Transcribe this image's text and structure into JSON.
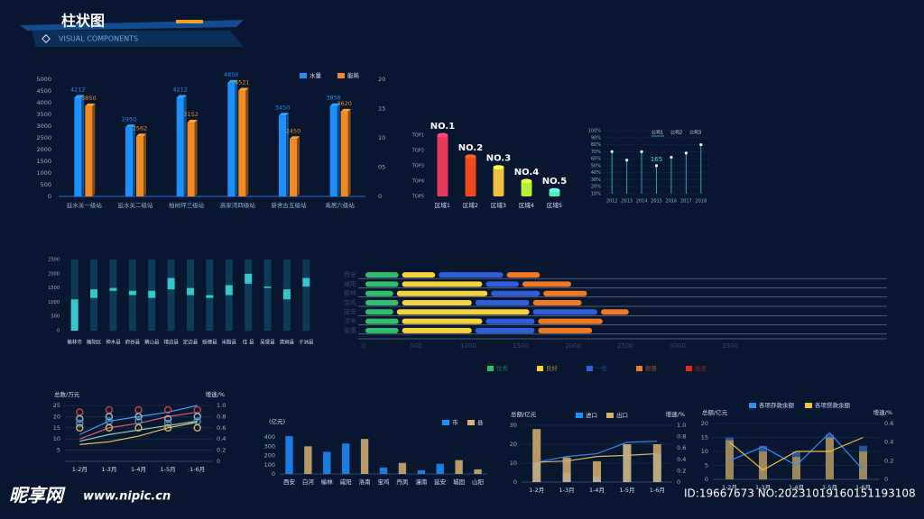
{
  "header": {
    "title": "柱状图",
    "subtitle": "VISUAL COMPONENTS"
  },
  "watermark": {
    "site": "昵享网",
    "url": "www.nipic.cn",
    "id": "ID:19667673 NO:20231019160151193108"
  },
  "chart_data": [
    {
      "type": "bar3d",
      "categories": [
        "延水关一级站",
        "延水关二级站",
        "柏树坪三级站",
        "高家湾四级站",
        "新舍古五级站",
        "禹居六级站"
      ],
      "series": [
        {
          "name": "水量",
          "color": "#1e8fff",
          "values": [
            4212,
            2950,
            4212,
            4850,
            3450,
            3856
          ]
        },
        {
          "name": "能耗",
          "color": "#f08a24",
          "values": [
            3850,
            2562,
            3152,
            4521,
            2450,
            3620
          ]
        }
      ],
      "ylim": [
        0,
        5000
      ],
      "yticks": [
        0,
        500,
        1000,
        1500,
        2000,
        2500,
        3000,
        3500,
        4000,
        4500,
        5000
      ],
      "y2lim": [
        0,
        20
      ],
      "y2ticks": [
        0,
        {
          "value": 5,
          "label": "05"
        },
        10,
        15,
        20
      ]
    },
    {
      "type": "rank",
      "categories": [
        "区域1",
        "区域2",
        "区域3",
        "区域4",
        "区域5"
      ],
      "values": [
        4,
        2.6,
        1.9,
        1,
        0.4
      ],
      "ranks": [
        "NO.1",
        "NO.2",
        "NO.3",
        "NO.4",
        "NO.5"
      ],
      "colors": [
        "#e8395f",
        "#f04a1c",
        "#f0c040",
        "#b6f03a",
        "#4df0b0"
      ],
      "ylim": [
        0,
        4
      ],
      "yticks": [
        {
          "value": 4,
          "label": "TOP1"
        },
        {
          "value": 3,
          "label": "TOP2"
        },
        {
          "value": 2,
          "label": "TOP3"
        },
        {
          "value": 1,
          "label": "TOP4"
        },
        {
          "value": 0,
          "label": "TOP5"
        }
      ]
    },
    {
      "type": "lollipop",
      "categories": [
        "2012",
        "2013",
        "2014",
        "2015",
        "2016",
        "2017",
        "2018"
      ],
      "values": [
        70,
        58,
        70,
        50,
        62,
        68,
        80
      ],
      "color": "#3ee0e0",
      "legend": [
        "公司1",
        "公司2",
        "公司3"
      ],
      "annotations": [
        {
          "text": "165",
          "at": "2015"
        }
      ],
      "ylim": [
        10,
        100
      ],
      "yticks": [
        {
          "value": 10,
          "label": "10%"
        },
        {
          "value": 20,
          "label": "20%"
        },
        {
          "value": 30,
          "label": "30%"
        },
        {
          "value": 40,
          "label": "40%"
        },
        {
          "value": 50,
          "label": "50%"
        },
        {
          "value": 60,
          "label": "60%"
        },
        {
          "value": 70,
          "label": "70%"
        },
        {
          "value": 80,
          "label": "80%"
        },
        {
          "value": 90,
          "label": "90%"
        },
        {
          "value": 100,
          "label": "100%"
        }
      ],
      "grid": true
    },
    {
      "type": "range",
      "categories": [
        "榆林市",
        "榆阳区",
        "神木县",
        "府谷县",
        "横山县",
        "靖边县",
        "定边县",
        "绥德县",
        "米脂县",
        "佳 县",
        "吴堡县",
        "清涧县",
        "子洲县"
      ],
      "ranges": [
        [
          0,
          1100
        ],
        [
          1150,
          1450
        ],
        [
          1400,
          1500
        ],
        [
          1250,
          1400
        ],
        [
          1150,
          1400
        ],
        [
          1450,
          1850
        ],
        [
          1250,
          1500
        ],
        [
          1150,
          1250
        ],
        [
          1250,
          1600
        ],
        [
          1650,
          2000
        ],
        [
          1500,
          1550
        ],
        [
          1100,
          1450
        ],
        [
          1550,
          1850
        ]
      ],
      "color": "#3de0e0",
      "ylim": [
        0,
        2500
      ],
      "yticks": [
        0,
        500,
        1000,
        1500,
        2000,
        2500
      ]
    },
    {
      "type": "hstack",
      "categories": [
        "西安",
        "咸阳",
        "榆林",
        "宝鸡",
        "延安",
        "汉中",
        "安康"
      ],
      "series": [
        {
          "name": "优秀",
          "color": "#2ebf6e",
          "values": [
            350,
            350,
            300,
            350,
            300,
            350,
            350
          ]
        },
        {
          "name": "良好",
          "color": "#f5d340",
          "values": [
            350,
            800,
            900,
            700,
            1300,
            800,
            700
          ]
        },
        {
          "name": "一般",
          "color": "#2f5fd8",
          "values": [
            650,
            350,
            500,
            550,
            650,
            500,
            600
          ]
        },
        {
          "name": "很差",
          "color": "#f07a24",
          "values": [
            350,
            500,
            450,
            500,
            300,
            650,
            550
          ]
        },
        {
          "name": "极差",
          "color": "#e02828",
          "values": [
            0,
            0,
            0,
            0,
            0,
            0,
            0
          ]
        }
      ],
      "xlim": [
        0,
        5000
      ],
      "xticks": [
        0,
        500,
        1000,
        1500,
        2000,
        2500,
        3000,
        3500
      ]
    },
    {
      "type": "combo",
      "ytitle": "总数/万元",
      "y2title": "增速/%",
      "categories": [
        "1-2月",
        "1-3月",
        "1-4月",
        "1-5月",
        "1-6月"
      ],
      "series": [
        {
          "kind": "line",
          "color": "#3fa0ff",
          "values": [
            12,
            18,
            20,
            22,
            25
          ]
        },
        {
          "kind": "line",
          "color": "#e05a6a",
          "values": [
            10,
            15,
            17,
            20,
            22
          ]
        },
        {
          "kind": "line",
          "color": "#8fd0c0",
          "values": [
            9,
            12,
            14,
            16,
            18
          ]
        },
        {
          "kind": "line",
          "axis": "y2",
          "color": "#e8c060",
          "values": [
            0.3,
            0.35,
            0.45,
            0.6,
            0.7
          ]
        },
        {
          "kind": "dot",
          "color": "#c0404a",
          "values": [
            22,
            23,
            23,
            23,
            23
          ]
        },
        {
          "kind": "dot",
          "color": "#a0b0b8",
          "values": [
            19,
            20,
            20,
            19,
            20
          ]
        },
        {
          "kind": "dot",
          "color": "#3a8fd0",
          "values": [
            17,
            18,
            18,
            17,
            18
          ]
        },
        {
          "kind": "dot",
          "color": "#d0b060",
          "values": [
            15,
            15,
            15,
            15,
            15
          ]
        }
      ],
      "ylim": [
        0,
        25
      ],
      "yticks": [
        5,
        10,
        15,
        20,
        25
      ],
      "y2lim": [
        0,
        1
      ],
      "y2ticks": [
        0,
        0.2,
        0.4,
        0.6,
        0.8,
        {
          "value": 1,
          "label": "1.0"
        }
      ],
      "grid": true
    },
    {
      "type": "bar",
      "ytitle": "(亿元)",
      "categories": [
        "西安",
        "白河",
        "榆林",
        "咸阳",
        "洛南",
        "宝鸡",
        "丹凤",
        "潼南",
        "延安",
        "城固",
        "山阳"
      ],
      "series": [
        {
          "kind": "bar",
          "name": "市",
          "color": "#1e8fff",
          "values": [
            410,
            null,
            240,
            330,
            null,
            70,
            null,
            40,
            110,
            null,
            null
          ]
        },
        {
          "kind": "bar",
          "name": "县",
          "color": "#d8b070",
          "values": [
            null,
            300,
            null,
            null,
            380,
            null,
            120,
            null,
            null,
            150,
            50
          ]
        }
      ],
      "ylim": [
        0,
        450
      ],
      "yticks": [
        0,
        100,
        200,
        300,
        400
      ]
    },
    {
      "type": "combo",
      "ytitle": "总额/亿元",
      "y2title": "增速/%",
      "categories": [
        "1-2月",
        "1-3月",
        "1-4月",
        "1-5月",
        "1-6月"
      ],
      "series": [
        {
          "kind": "bar",
          "name": "进口",
          "color": "#1e8fff",
          "values": [
            10,
            5,
            3,
            20,
            15
          ]
        },
        {
          "kind": "bar",
          "name": "出口",
          "color": "#d8b070",
          "values": [
            28,
            13,
            11,
            20,
            20
          ]
        },
        {
          "kind": "line",
          "axis": "y2",
          "color": "#3a80e0",
          "values": [
            0.35,
            0.45,
            0.5,
            0.7,
            0.72
          ]
        },
        {
          "kind": "line",
          "axis": "y2",
          "color": "#d8b070",
          "values": [
            0.35,
            0.37,
            0.45,
            0.47,
            0.5
          ]
        }
      ],
      "ylim": [
        0,
        30
      ],
      "yticks": [
        0,
        10,
        20,
        30
      ],
      "y2lim": [
        0,
        1
      ],
      "y2ticks": [
        0,
        0.2,
        0.4,
        0.6,
        0.8,
        {
          "value": 1,
          "label": "1.0"
        }
      ],
      "grid": true
    },
    {
      "type": "combo",
      "ytitle": "总额/亿元",
      "y2title": "增速/%",
      "categories": [
        "1-2月",
        "1-3月",
        "1-4月",
        "1-5月",
        "1-6月"
      ],
      "series": [
        {
          "kind": "bar",
          "color": "#2a60b0",
          "values": [
            15,
            12,
            10,
            16,
            12
          ]
        },
        {
          "kind": "bar",
          "color": "#b09050",
          "values": [
            14,
            10,
            8,
            15,
            10
          ]
        },
        {
          "kind": "line",
          "axis": "y2",
          "name": "各项存款余额",
          "color": "#2f8fff",
          "values": [
            0.2,
            0.35,
            0.15,
            0.5,
            0.1
          ]
        },
        {
          "kind": "line",
          "axis": "y2",
          "name": "各项贷款余额",
          "color": "#f0c040",
          "values": [
            0.4,
            0.1,
            0.3,
            0.3,
            0.45
          ]
        }
      ],
      "ylim": [
        0,
        20
      ],
      "yticks": [
        0,
        5,
        10,
        15,
        20
      ],
      "y2lim": [
        0,
        0.6
      ],
      "y2ticks": [
        0,
        0.2,
        0.4,
        0.6
      ],
      "grid": true
    }
  ]
}
